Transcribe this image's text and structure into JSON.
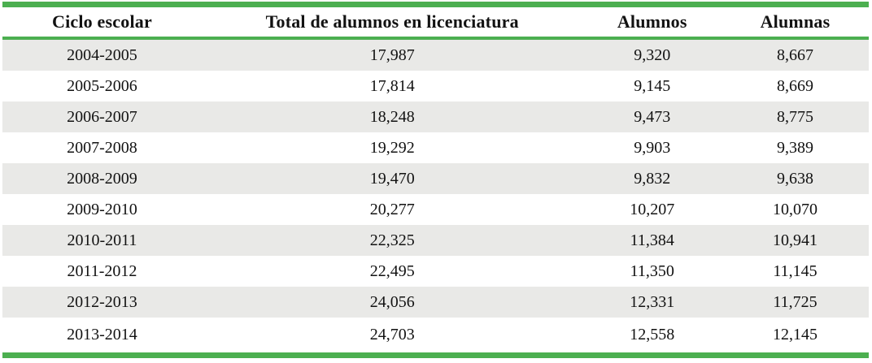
{
  "chart_data": {
    "type": "table",
    "columns": [
      "Ciclo escolar",
      "Total de alumnos en licenciatura",
      "Alumnos",
      "Alumnas"
    ],
    "rows": [
      [
        "2004-2005",
        "17,987",
        "9,320",
        "8,667"
      ],
      [
        "2005-2006",
        "17,814",
        "9,145",
        "8,669"
      ],
      [
        "2006-2007",
        "18,248",
        "9,473",
        "8,775"
      ],
      [
        "2007-2008",
        "19,292",
        "9,903",
        "9,389"
      ],
      [
        "2008-2009",
        "19,470",
        "9,832",
        "9,638"
      ],
      [
        "2009-2010",
        "20,277",
        "10,207",
        "10,070"
      ],
      [
        "2010-2011",
        "22,325",
        "11,384",
        "10,941"
      ],
      [
        "2011-2012",
        "22,495",
        "11,350",
        "11,145"
      ],
      [
        "2012-2013",
        "24,056",
        "12,331",
        "11,725"
      ],
      [
        "2013-2014",
        "24,703",
        "12,558",
        "12,145"
      ]
    ],
    "layout": {
      "striped_rows": "odd",
      "alignment": "center"
    }
  },
  "colors": {
    "accent_green": "#4caf50",
    "row_alt_gray": "#e9e9e7",
    "text": "#121212",
    "background": "#ffffff"
  },
  "cell_names": [
    "cell-ciclo-escolar",
    "cell-total-alumnos",
    "cell-alumnos",
    "cell-alumnas"
  ]
}
